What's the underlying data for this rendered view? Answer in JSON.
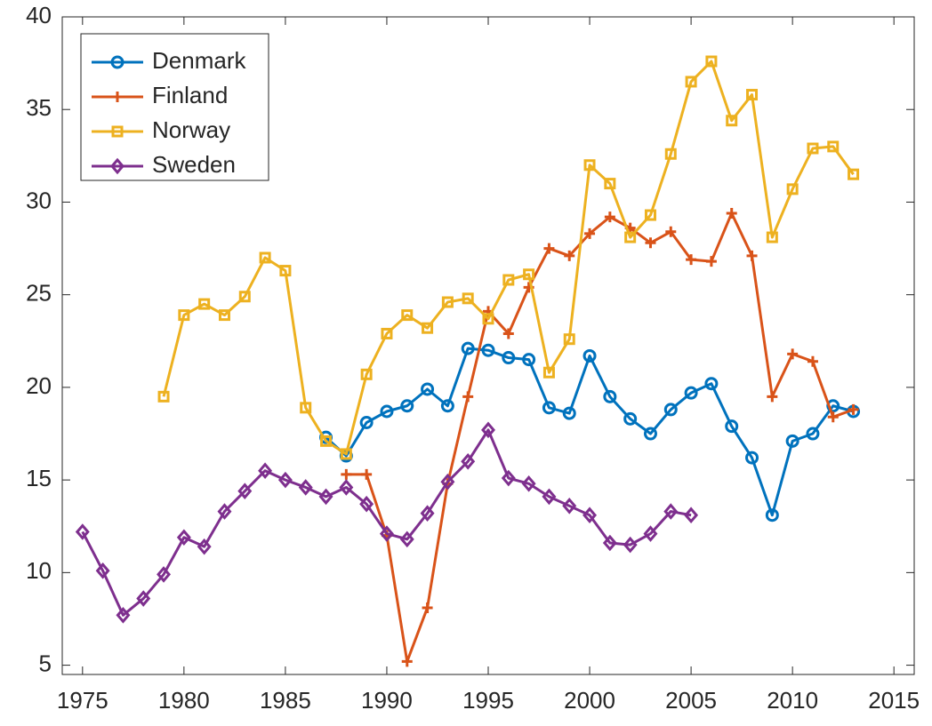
{
  "chart_data": {
    "type": "line",
    "x": [
      1975,
      1976,
      1977,
      1978,
      1979,
      1980,
      1981,
      1982,
      1983,
      1984,
      1985,
      1986,
      1987,
      1988,
      1989,
      1990,
      1991,
      1992,
      1993,
      1994,
      1995,
      1996,
      1997,
      1998,
      1999,
      2000,
      2001,
      2002,
      2003,
      2004,
      2005,
      2006,
      2007,
      2008,
      2009,
      2010,
      2011,
      2012,
      2013
    ],
    "series": [
      {
        "name": "Denmark",
        "color": "#0072bd",
        "marker": "circle",
        "values": [
          null,
          null,
          null,
          null,
          null,
          null,
          null,
          null,
          null,
          null,
          null,
          null,
          17.3,
          16.3,
          18.1,
          18.7,
          19.0,
          19.9,
          19.0,
          22.1,
          22.0,
          21.6,
          21.5,
          18.9,
          18.6,
          21.7,
          19.5,
          18.3,
          17.5,
          18.8,
          19.7,
          20.2,
          17.9,
          16.2,
          13.1,
          17.1,
          17.5,
          19.0,
          18.7
        ]
      },
      {
        "name": "Finland",
        "color": "#d95319",
        "marker": "plus",
        "values": [
          null,
          null,
          null,
          null,
          null,
          null,
          null,
          null,
          null,
          null,
          null,
          null,
          null,
          15.3,
          15.3,
          12.0,
          5.2,
          8.1,
          14.8,
          19.5,
          24.1,
          22.9,
          25.4,
          27.5,
          27.1,
          28.3,
          29.2,
          28.6,
          27.8,
          28.4,
          26.9,
          26.8,
          29.4,
          27.1,
          19.5,
          21.8,
          21.4,
          18.4,
          18.8
        ]
      },
      {
        "name": "Norway",
        "color": "#edb120",
        "marker": "square",
        "values": [
          null,
          null,
          null,
          null,
          19.5,
          23.9,
          24.5,
          23.9,
          24.9,
          27.0,
          26.3,
          18.9,
          17.1,
          16.4,
          20.7,
          22.9,
          23.9,
          23.2,
          24.6,
          24.8,
          23.7,
          25.8,
          26.1,
          20.8,
          22.6,
          32.0,
          31.0,
          28.1,
          29.3,
          32.6,
          36.5,
          37.6,
          34.4,
          35.8,
          28.1,
          30.7,
          32.9,
          33.0,
          31.5
        ]
      },
      {
        "name": "Sweden",
        "color": "#7e2f8e",
        "marker": "diamond",
        "values": [
          12.2,
          10.1,
          7.7,
          8.6,
          9.9,
          11.9,
          11.4,
          13.3,
          14.4,
          15.5,
          15.0,
          14.6,
          14.1,
          14.6,
          13.7,
          12.1,
          11.8,
          13.2,
          14.9,
          16.0,
          17.7,
          15.1,
          14.8,
          14.1,
          13.6,
          13.1,
          11.6,
          11.5,
          12.1,
          13.3,
          13.1,
          null,
          null,
          null,
          null,
          null,
          null,
          null,
          null
        ]
      }
    ],
    "xlim": [
      1974,
      2016
    ],
    "xticks": [
      1975,
      1980,
      1985,
      1990,
      1995,
      2000,
      2005,
      2010,
      2015
    ],
    "ylim": [
      4.5,
      40
    ],
    "yticks": [
      5,
      10,
      15,
      20,
      25,
      30,
      35,
      40
    ],
    "legend": "top-left"
  }
}
